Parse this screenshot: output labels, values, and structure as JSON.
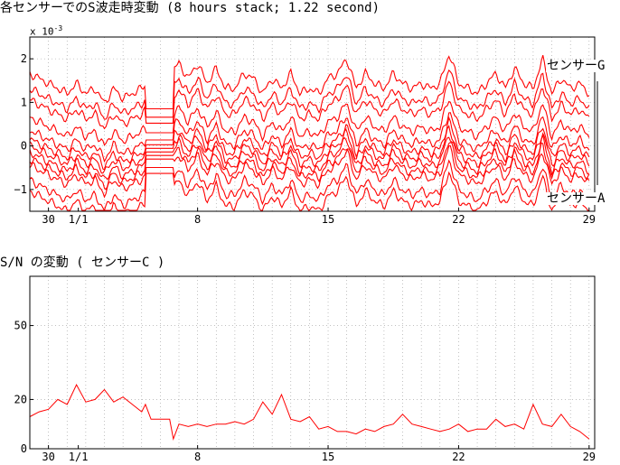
{
  "titles": {
    "top": "各センサーでのS波走時変動 (8 hours stack; 1.22 second)",
    "bottom": "S/N の変動 ( センサーC )"
  },
  "labels": {
    "sensor_g": "センサーG",
    "sensor_a": "センサーA",
    "exponent_base": "x 10",
    "exponent_power": "-3"
  },
  "colors": {
    "series": "#ff0000",
    "grid": "#9a9a9a",
    "axis": "#000000",
    "bracket": "#000000"
  },
  "chart_data": [
    {
      "type": "line",
      "title": "各センサーでのS波走時変動 (8 hours stack; 1.22 second)",
      "x_unit": "day",
      "xlim": [
        -1,
        29.3
      ],
      "ylim": [
        -1.5,
        2.5
      ],
      "y_scale_note": "x 10^-3",
      "x_ticks": [
        {
          "x": 0,
          "label": "30"
        },
        {
          "x": 1.6,
          "label": "1/1"
        },
        {
          "x": 8,
          "label": "8"
        },
        {
          "x": 15,
          "label": "15"
        },
        {
          "x": 22,
          "label": "22"
        },
        {
          "x": 29,
          "label": "29"
        }
      ],
      "y_ticks": [
        {
          "y": -1,
          "label": "−1"
        },
        {
          "y": 0,
          "label": "0"
        },
        {
          "y": 1,
          "label": "1"
        },
        {
          "y": 2,
          "label": "2"
        }
      ],
      "grid": "dotted",
      "series_count": 12,
      "series_offsets": [
        1.55,
        1.2,
        0.95,
        0.55,
        0.25,
        0.05,
        -0.1,
        -0.25,
        -0.4,
        -0.55,
        -0.9,
        -1.15
      ],
      "series_amplitudes": [
        0.35,
        0.35,
        0.3,
        0.3,
        0.3,
        0.25,
        0.25,
        0.3,
        0.3,
        0.3,
        0.35,
        0.35
      ],
      "common_signal": {
        "x": [
          -1,
          -0.5,
          0,
          0.5,
          1,
          1.5,
          2,
          2.5,
          3,
          3.5,
          4,
          4.5,
          5,
          5.5,
          6,
          6.5,
          7,
          7.5,
          8,
          8.5,
          9,
          9.5,
          10,
          10.5,
          11,
          11.5,
          12,
          12.5,
          13,
          13.5,
          14,
          14.5,
          15,
          15.5,
          16,
          16.5,
          17,
          17.5,
          18,
          18.5,
          19,
          19.5,
          20,
          20.5,
          21,
          21.5,
          22,
          22.5,
          23,
          23.5,
          24,
          24.5,
          25,
          25.5,
          26,
          26.5,
          27,
          27.5,
          28,
          28.5,
          29
        ],
        "y": [
          0.1,
          0.0,
          -0.1,
          -0.2,
          -0.3,
          -0.1,
          -0.3,
          -0.2,
          -0.5,
          -0.2,
          -0.4,
          -0.3,
          -0.2,
          0.0,
          0.2,
          0.1,
          0.3,
          0.0,
          0.3,
          -0.1,
          0.2,
          -0.2,
          -0.2,
          0.1,
          0.0,
          -0.3,
          0.0,
          -0.2,
          0.1,
          -0.3,
          -0.2,
          -0.3,
          0.0,
          0.1,
          0.4,
          -0.2,
          0.1,
          -0.1,
          -0.2,
          0.1,
          -0.1,
          -0.2,
          -0.1,
          -0.2,
          -0.1,
          0.5,
          -0.1,
          -0.2,
          -0.3,
          -0.1,
          0.1,
          -0.2,
          0.2,
          -0.1,
          -0.2,
          0.4,
          -0.3,
          0.0,
          -0.2,
          -0.1,
          -0.3
        ]
      },
      "gap_x_range": [
        5.2,
        6.7
      ],
      "legend": "labels at right: センサーG (top), センサーA (bottom)"
    },
    {
      "type": "line",
      "title": "S/N の変動 ( センサーC )",
      "x_unit": "day",
      "xlim": [
        -1,
        29.3
      ],
      "ylim": [
        0,
        70
      ],
      "x_ticks": [
        {
          "x": 0,
          "label": "30"
        },
        {
          "x": 1.6,
          "label": "1/1"
        },
        {
          "x": 8,
          "label": "8"
        },
        {
          "x": 15,
          "label": "15"
        },
        {
          "x": 22,
          "label": "22"
        },
        {
          "x": 29,
          "label": "29"
        }
      ],
      "y_ticks": [
        {
          "y": 0,
          "label": "0"
        },
        {
          "y": 20,
          "label": "20"
        },
        {
          "y": 50,
          "label": "50"
        }
      ],
      "grid": "dotted",
      "series": [
        {
          "name": "",
          "x": [
            -1,
            -0.5,
            0,
            0.5,
            1,
            1.5,
            2,
            2.5,
            3,
            3.5,
            4,
            4.5,
            5,
            5.2,
            5.5,
            6,
            6.5,
            6.7,
            7,
            7.5,
            8,
            8.5,
            9,
            9.5,
            10,
            10.5,
            11,
            11.5,
            12,
            12.5,
            13,
            13.5,
            14,
            14.5,
            15,
            15.5,
            16,
            16.5,
            17,
            17.5,
            18,
            18.5,
            19,
            19.5,
            20,
            20.5,
            21,
            21.5,
            22,
            22.5,
            23,
            23.5,
            24,
            24.5,
            25,
            25.5,
            26,
            26.5,
            27,
            27.5,
            28,
            28.5,
            29
          ],
          "y": [
            13,
            15,
            16,
            20,
            18,
            26,
            19,
            20,
            24,
            19,
            21,
            18,
            15,
            18,
            12,
            12,
            12,
            4,
            10,
            9,
            10,
            9,
            10,
            10,
            11,
            10,
            12,
            19,
            14,
            22,
            12,
            11,
            13,
            8,
            9,
            7,
            7,
            6,
            8,
            7,
            9,
            10,
            14,
            10,
            9,
            8,
            7,
            8,
            10,
            7,
            8,
            8,
            12,
            9,
            10,
            8,
            18,
            10,
            9,
            14,
            9,
            7,
            4
          ]
        }
      ]
    }
  ]
}
